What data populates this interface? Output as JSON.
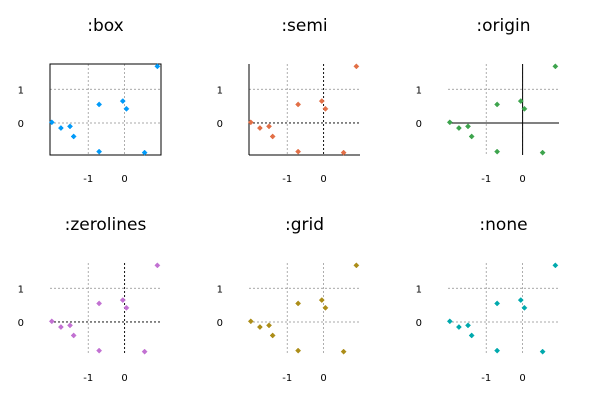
{
  "chart_data": {
    "type": "scatter",
    "figure_title": "",
    "series_x": [
      -2.0,
      -1.75,
      -1.5,
      -1.4,
      -0.7,
      -0.7,
      -0.05,
      0.05,
      0.55,
      0.9
    ],
    "series_y": [
      0.02,
      -0.15,
      -0.1,
      -0.4,
      0.55,
      -0.85,
      0.65,
      0.42,
      -0.88,
      1.68
    ],
    "xlim": [
      -2.05,
      1.0
    ],
    "ylim": [
      -0.95,
      1.75
    ],
    "xticks": [
      -1,
      0
    ],
    "yticks": [
      0,
      1
    ],
    "subplots": [
      {
        "title": ":box",
        "framestyle": "box",
        "color": "#009af9"
      },
      {
        "title": ":semi",
        "framestyle": "semi",
        "color": "#e26f46"
      },
      {
        "title": ":origin",
        "framestyle": "origin",
        "color": "#3da44d"
      },
      {
        "title": ":zerolines",
        "framestyle": "zerolines",
        "color": "#c271d2"
      },
      {
        "title": ":grid",
        "framestyle": "grid",
        "color": "#ac8d18"
      },
      {
        "title": ":none",
        "framestyle": "none",
        "color": "#00a9ad"
      }
    ]
  }
}
